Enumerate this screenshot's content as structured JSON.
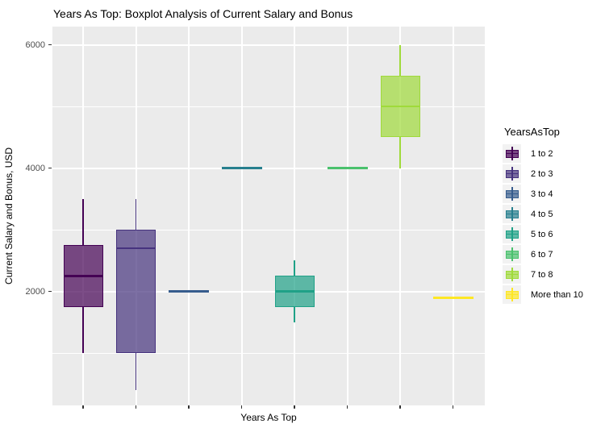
{
  "chart_data": {
    "type": "boxplot",
    "title": "Years As Top: Boxplot Analysis of Current Salary and Bonus",
    "xlabel": "Years As Top",
    "ylabel": "Current Salary and Bonus, USD",
    "y_ticks": [
      6000,
      4000,
      2000
    ],
    "y_minor_gridlines": [
      5000,
      3000,
      1000
    ],
    "ylim": [
      225,
      6290
    ],
    "x_tick_labels_shown": false,
    "panel_bg": "#EBEBEB",
    "grid_color": "#FFFFFF",
    "legend_title": "YearsAsTop",
    "legend_position": "right",
    "categories": [
      "1 to 2",
      "2 to 3",
      "3 to 4",
      "4 to 5",
      "5 to 6",
      "6 to 7",
      "7 to 8",
      "More than 10"
    ],
    "series": [
      {
        "name": "1 to 2",
        "color": "#440154",
        "whisker_low": 1000,
        "q1": 1750,
        "median": 2250,
        "q3": 2750,
        "whisker_high": 3500
      },
      {
        "name": "2 to 3",
        "color": "#46337E",
        "whisker_low": 400,
        "q1": 1000,
        "median": 2700,
        "q3": 3000,
        "whisker_high": 3500
      },
      {
        "name": "3 to 4",
        "color": "#365C8D",
        "whisker_low": 2000,
        "q1": 2000,
        "median": 2000,
        "q3": 2000,
        "whisker_high": 2000
      },
      {
        "name": "4 to 5",
        "color": "#277F8E",
        "whisker_low": 4000,
        "q1": 4000,
        "median": 4000,
        "q3": 4000,
        "whisker_high": 4000
      },
      {
        "name": "5 to 6",
        "color": "#1FA187",
        "whisker_low": 1500,
        "q1": 1750,
        "median": 2000,
        "q3": 2250,
        "whisker_high": 2500
      },
      {
        "name": "6 to 7",
        "color": "#4AC16D",
        "whisker_low": 4000,
        "q1": 4000,
        "median": 4000,
        "q3": 4000,
        "whisker_high": 4000
      },
      {
        "name": "7 to 8",
        "color": "#9FDA3A",
        "whisker_low": 4000,
        "q1": 4500,
        "median": 5000,
        "q3": 5500,
        "whisker_high": 6000
      },
      {
        "name": "More than 10",
        "color": "#FDE725",
        "whisker_low": 1900,
        "q1": 1900,
        "median": 1900,
        "q3": 1900,
        "whisker_high": 1900
      }
    ]
  }
}
